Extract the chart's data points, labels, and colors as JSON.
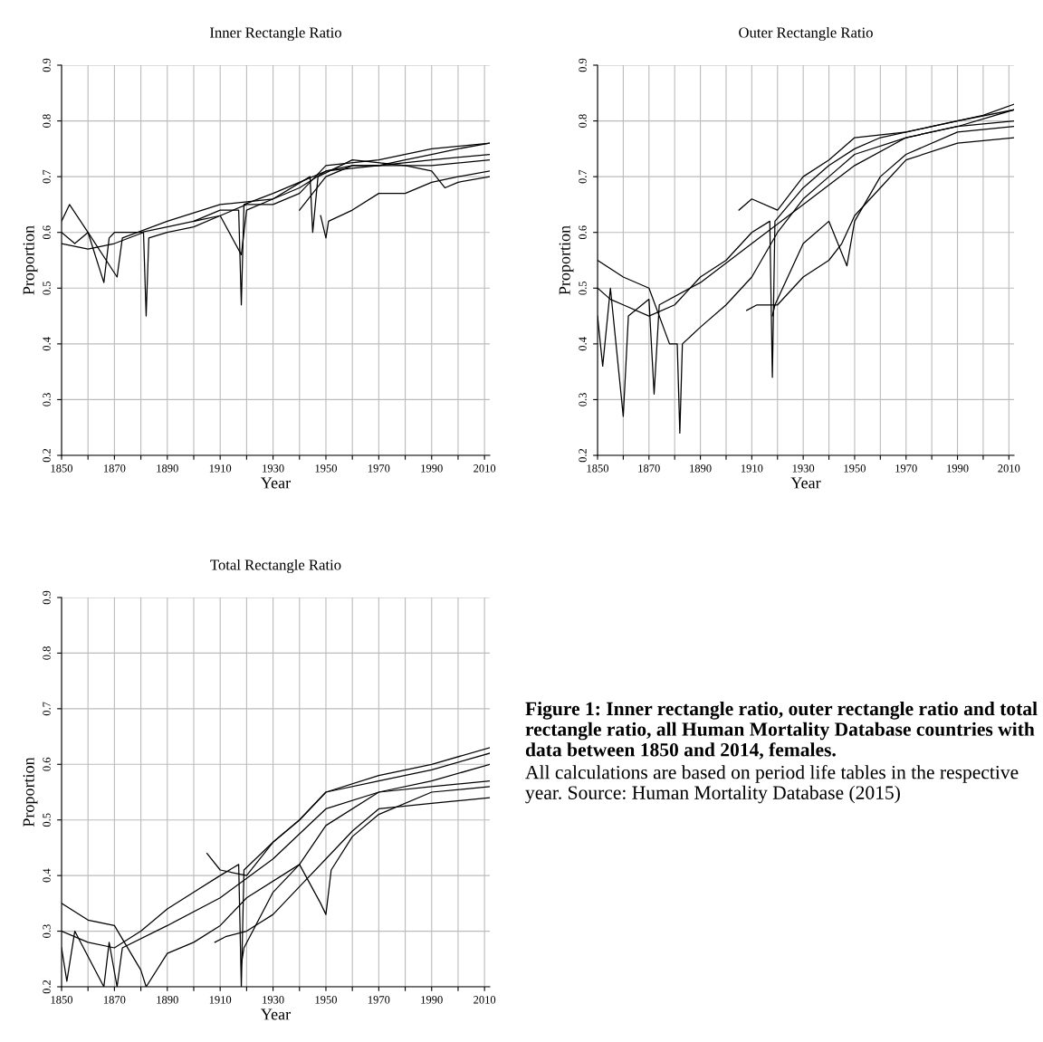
{
  "chart_data": [
    {
      "type": "line",
      "title": "Inner Rectangle Ratio",
      "xlabel": "Year",
      "ylabel": "Proportion",
      "xlim": [
        1850,
        2012
      ],
      "ylim": [
        0.2,
        0.9
      ],
      "xticks": [
        1850,
        {
          "value": 1860,
          "label": null
        },
        1870,
        {
          "value": 1880,
          "label": null
        },
        1890,
        {
          "value": 1900,
          "label": null
        },
        1910,
        {
          "value": 1920,
          "label": null
        },
        1930,
        {
          "value": 1940,
          "label": null
        },
        1950,
        {
          "value": 1960,
          "label": null
        },
        1970,
        {
          "value": 1980,
          "label": null
        },
        1990,
        {
          "value": 2000,
          "label": null
        },
        2010
      ],
      "yticks": [
        0.2,
        0.3,
        0.4,
        0.5,
        0.6,
        0.7,
        0.8,
        0.9
      ],
      "grid": true,
      "legend": false,
      "line_style": "solid",
      "series": [
        {
          "color": "#000000",
          "x": [
            1850,
            1855,
            1860,
            1866,
            1868,
            1870,
            1880,
            1890,
            1900,
            1910,
            1917,
            1918,
            1919,
            1930,
            1940,
            1950,
            1960,
            1970,
            1980,
            1990,
            2000,
            2012
          ],
          "values": [
            0.6,
            0.58,
            0.6,
            0.51,
            0.59,
            0.6,
            0.6,
            0.61,
            0.62,
            0.64,
            0.64,
            0.47,
            0.65,
            0.67,
            0.69,
            0.71,
            0.72,
            0.72,
            0.73,
            0.74,
            0.75,
            0.76
          ]
        },
        {
          "color": "#000000",
          "x": [
            1850,
            1860,
            1870,
            1881,
            1882,
            1883,
            1890,
            1900,
            1910,
            1918,
            1920,
            1930,
            1940,
            1950,
            1970,
            1990,
            2012
          ],
          "values": [
            0.58,
            0.57,
            0.58,
            0.6,
            0.45,
            0.59,
            0.6,
            0.61,
            0.63,
            0.56,
            0.64,
            0.66,
            0.68,
            0.71,
            0.72,
            0.73,
            0.74
          ]
        },
        {
          "color": "#000000",
          "x": [
            1850,
            1853,
            1860,
            1871,
            1873,
            1890,
            1910,
            1930,
            1944,
            1945,
            1947,
            1960,
            1980,
            1990,
            2012
          ],
          "values": [
            0.62,
            0.65,
            0.6,
            0.52,
            0.59,
            0.62,
            0.65,
            0.66,
            0.7,
            0.6,
            0.7,
            0.73,
            0.72,
            0.72,
            0.73
          ]
        },
        {
          "color": "#000000",
          "x": [
            1948,
            1950,
            1951,
            1960,
            1970,
            1980,
            1990,
            2000,
            2012
          ],
          "values": [
            0.63,
            0.59,
            0.62,
            0.64,
            0.67,
            0.67,
            0.69,
            0.7,
            0.71
          ]
        },
        {
          "color": "#000000",
          "x": [
            1940,
            1945,
            1950,
            1960,
            1980,
            1990,
            1995,
            2000,
            2012
          ],
          "values": [
            0.64,
            0.67,
            0.7,
            0.72,
            0.72,
            0.71,
            0.68,
            0.69,
            0.7
          ]
        },
        {
          "color": "#000000",
          "x": [
            1900,
            1910,
            1920,
            1930,
            1940,
            1950,
            1970,
            1990,
            2012
          ],
          "values": [
            0.62,
            0.63,
            0.65,
            0.65,
            0.67,
            0.72,
            0.73,
            0.75,
            0.76
          ]
        }
      ]
    },
    {
      "type": "line",
      "title": "Outer Rectangle Ratio",
      "xlabel": "Year",
      "ylabel": "Proportion",
      "xlim": [
        1850,
        2012
      ],
      "ylim": [
        0.2,
        0.9
      ],
      "xticks": [
        1850,
        {
          "value": 1860,
          "label": null
        },
        1870,
        {
          "value": 1880,
          "label": null
        },
        1890,
        {
          "value": 1900,
          "label": null
        },
        1910,
        {
          "value": 1920,
          "label": null
        },
        1930,
        {
          "value": 1940,
          "label": null
        },
        1950,
        {
          "value": 1960,
          "label": null
        },
        1970,
        {
          "value": 1980,
          "label": null
        },
        1990,
        {
          "value": 2000,
          "label": null
        },
        2010
      ],
      "yticks": [
        0.2,
        0.3,
        0.4,
        0.5,
        0.6,
        0.7,
        0.8,
        0.9
      ],
      "grid": true,
      "legend": false,
      "line_style": "solid",
      "series": [
        {
          "color": "#000000",
          "x": [
            1850,
            1855,
            1860,
            1870,
            1880,
            1890,
            1900,
            1910,
            1917,
            1918,
            1919,
            1930,
            1940,
            1950,
            1960,
            1980,
            2000,
            2012
          ],
          "values": [
            0.5,
            0.48,
            0.47,
            0.45,
            0.47,
            0.52,
            0.55,
            0.6,
            0.62,
            0.34,
            0.62,
            0.68,
            0.72,
            0.75,
            0.77,
            0.79,
            0.81,
            0.83
          ]
        },
        {
          "color": "#000000",
          "x": [
            1850,
            1852,
            1855,
            1860,
            1862,
            1870,
            1872,
            1874,
            1890,
            1910,
            1930,
            1950,
            1970,
            1990,
            2012
          ],
          "values": [
            0.45,
            0.36,
            0.5,
            0.27,
            0.45,
            0.48,
            0.31,
            0.47,
            0.51,
            0.58,
            0.65,
            0.72,
            0.77,
            0.79,
            0.82
          ]
        },
        {
          "color": "#000000",
          "x": [
            1850,
            1860,
            1870,
            1878,
            1881,
            1882,
            1883,
            1890,
            1900,
            1910,
            1920,
            1930,
            1940,
            1950,
            1970,
            1990,
            2012
          ],
          "values": [
            0.55,
            0.52,
            0.5,
            0.4,
            0.4,
            0.24,
            0.4,
            0.43,
            0.47,
            0.52,
            0.6,
            0.66,
            0.7,
            0.74,
            0.77,
            0.79,
            0.8
          ]
        },
        {
          "color": "#000000",
          "x": [
            1908,
            1912,
            1920,
            1930,
            1940,
            1945,
            1950,
            1960,
            1970,
            1990,
            2012
          ],
          "values": [
            0.46,
            0.47,
            0.47,
            0.52,
            0.55,
            0.58,
            0.63,
            0.68,
            0.73,
            0.76,
            0.77
          ]
        },
        {
          "color": "#000000",
          "x": [
            1918,
            1919,
            1930,
            1940,
            1947,
            1950,
            1960,
            1970,
            1990,
            2012
          ],
          "values": [
            0.45,
            0.47,
            0.58,
            0.62,
            0.54,
            0.62,
            0.7,
            0.74,
            0.78,
            0.79
          ]
        },
        {
          "color": "#000000",
          "x": [
            1905,
            1910,
            1920,
            1930,
            1940,
            1950,
            1970,
            1990,
            2012
          ],
          "values": [
            0.64,
            0.66,
            0.64,
            0.7,
            0.73,
            0.77,
            0.78,
            0.8,
            0.82
          ]
        }
      ]
    },
    {
      "type": "line",
      "title": "Total Rectangle Ratio",
      "xlabel": "Year",
      "ylabel": "Proportion",
      "xlim": [
        1850,
        2012
      ],
      "ylim": [
        0.2,
        0.9
      ],
      "xticks": [
        1850,
        {
          "value": 1860,
          "label": null
        },
        1870,
        {
          "value": 1880,
          "label": null
        },
        1890,
        {
          "value": 1900,
          "label": null
        },
        1910,
        {
          "value": 1920,
          "label": null
        },
        1930,
        {
          "value": 1940,
          "label": null
        },
        1950,
        {
          "value": 1960,
          "label": null
        },
        1970,
        {
          "value": 1980,
          "label": null
        },
        1990,
        {
          "value": 2000,
          "label": null
        },
        2010
      ],
      "yticks": [
        0.2,
        0.3,
        0.4,
        0.5,
        0.6,
        0.7,
        0.8,
        0.9
      ],
      "grid": true,
      "legend": false,
      "line_style": "solid",
      "series": [
        {
          "color": "#000000",
          "x": [
            1850,
            1860,
            1870,
            1880,
            1890,
            1900,
            1910,
            1917,
            1918,
            1919,
            1930,
            1940,
            1950,
            1970,
            1990,
            2012
          ],
          "values": [
            0.3,
            0.28,
            0.27,
            0.3,
            0.34,
            0.37,
            0.4,
            0.42,
            0.2,
            0.41,
            0.46,
            0.5,
            0.55,
            0.57,
            0.59,
            0.62
          ]
        },
        {
          "color": "#000000",
          "x": [
            1850,
            1852,
            1855,
            1866,
            1868,
            1871,
            1873,
            1890,
            1910,
            1930,
            1950,
            1970,
            1990,
            2012
          ],
          "values": [
            0.27,
            0.21,
            0.3,
            0.2,
            0.28,
            0.2,
            0.27,
            0.31,
            0.36,
            0.43,
            0.52,
            0.55,
            0.57,
            0.6
          ]
        },
        {
          "color": "#000000",
          "x": [
            1850,
            1860,
            1870,
            1880,
            1882,
            1890,
            1900,
            1910,
            1920,
            1940,
            1950,
            1970,
            1990,
            2012
          ],
          "values": [
            0.35,
            0.32,
            0.31,
            0.23,
            0.2,
            0.26,
            0.28,
            0.31,
            0.36,
            0.42,
            0.49,
            0.55,
            0.56,
            0.57
          ]
        },
        {
          "color": "#000000",
          "x": [
            1908,
            1912,
            1920,
            1930,
            1940,
            1950,
            1960,
            1970,
            1990,
            2012
          ],
          "values": [
            0.28,
            0.29,
            0.3,
            0.33,
            0.38,
            0.43,
            0.48,
            0.52,
            0.53,
            0.54
          ]
        },
        {
          "color": "#000000",
          "x": [
            1918,
            1919,
            1930,
            1940,
            1948,
            1950,
            1952,
            1960,
            1970,
            1990,
            2012
          ],
          "values": [
            0.24,
            0.27,
            0.37,
            0.42,
            0.35,
            0.33,
            0.41,
            0.47,
            0.51,
            0.55,
            0.56
          ]
        },
        {
          "color": "#000000",
          "x": [
            1905,
            1910,
            1920,
            1930,
            1940,
            1950,
            1970,
            1990,
            2012
          ],
          "values": [
            0.44,
            0.41,
            0.4,
            0.46,
            0.5,
            0.55,
            0.58,
            0.6,
            0.63
          ]
        }
      ]
    },
    {
      "type": "other",
      "annotations": [
        "Figure 1: Inner rectangle ratio, outer rectangle ratio and total rectangle ratio, all Human Mortality Database countries with data between 1850 and 2014, females.",
        "All calculations are based on period life tables in the respective year. Source: Human Mortality Database (2015)"
      ]
    }
  ]
}
